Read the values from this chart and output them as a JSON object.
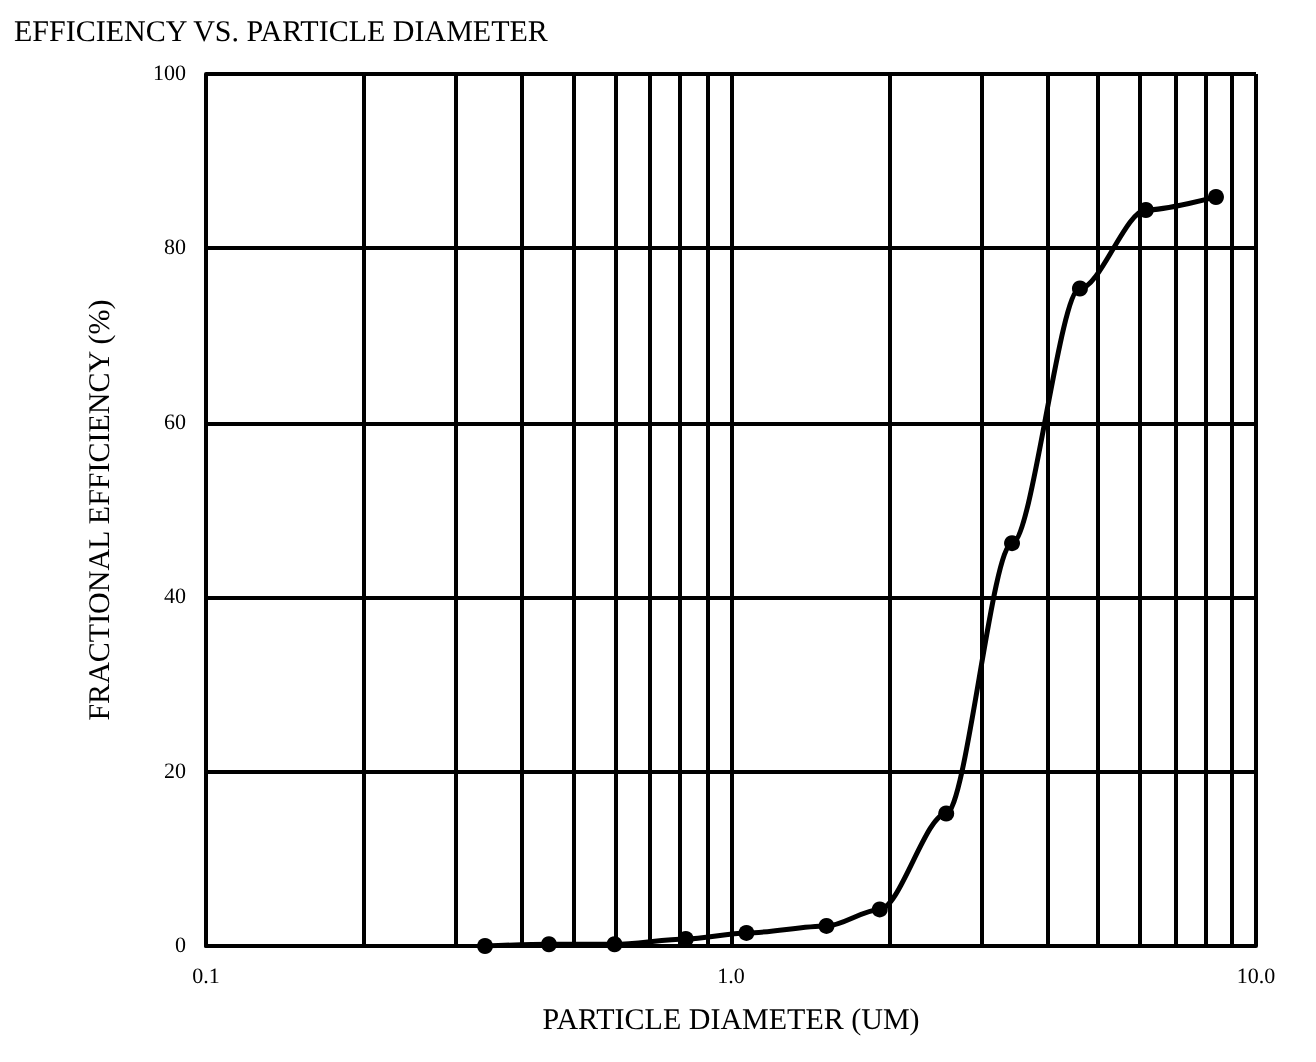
{
  "chart_data": {
    "type": "line",
    "title": "EFFICIENCY VS. PARTICLE DIAMETER",
    "xlabel": "PARTICLE DIAMETER (UM)",
    "ylabel": "FRACTIONAL EFFICIENCY (%)",
    "log": "x",
    "grid": true,
    "marker": "circle",
    "line_style": "solid",
    "xlim": [
      0.1,
      10
    ],
    "ylim": [
      0,
      100
    ],
    "xticks": [
      {
        "value": 0.1,
        "label": "0.1"
      },
      {
        "value": 0.2,
        "label": null
      },
      {
        "value": 0.3,
        "label": null
      },
      {
        "value": 0.4,
        "label": null
      },
      {
        "value": 0.5,
        "label": null
      },
      {
        "value": 0.6,
        "label": null
      },
      {
        "value": 0.7,
        "label": null
      },
      {
        "value": 0.8,
        "label": null
      },
      {
        "value": 0.9,
        "label": null
      },
      {
        "value": 1,
        "label": "1.0"
      },
      {
        "value": 2,
        "label": null
      },
      {
        "value": 3,
        "label": null
      },
      {
        "value": 4,
        "label": null
      },
      {
        "value": 5,
        "label": null
      },
      {
        "value": 6,
        "label": null
      },
      {
        "value": 7,
        "label": null
      },
      {
        "value": 8,
        "label": null
      },
      {
        "value": 9,
        "label": null
      },
      {
        "value": 10,
        "label": "10.0"
      }
    ],
    "yticks": [
      0,
      20,
      40,
      60,
      80,
      100
    ],
    "series": [
      {
        "color": "#000000",
        "x": [
          0.34,
          0.45,
          0.6,
          0.82,
          1.07,
          1.52,
          1.92,
          2.57,
          3.43,
          4.62,
          6.17,
          8.39
        ],
        "values": [
          0,
          0.2,
          0.2,
          0.8,
          1.5,
          2.3,
          4.2,
          15.2,
          46.2,
          75.4,
          84.4,
          85.9
        ]
      }
    ]
  }
}
